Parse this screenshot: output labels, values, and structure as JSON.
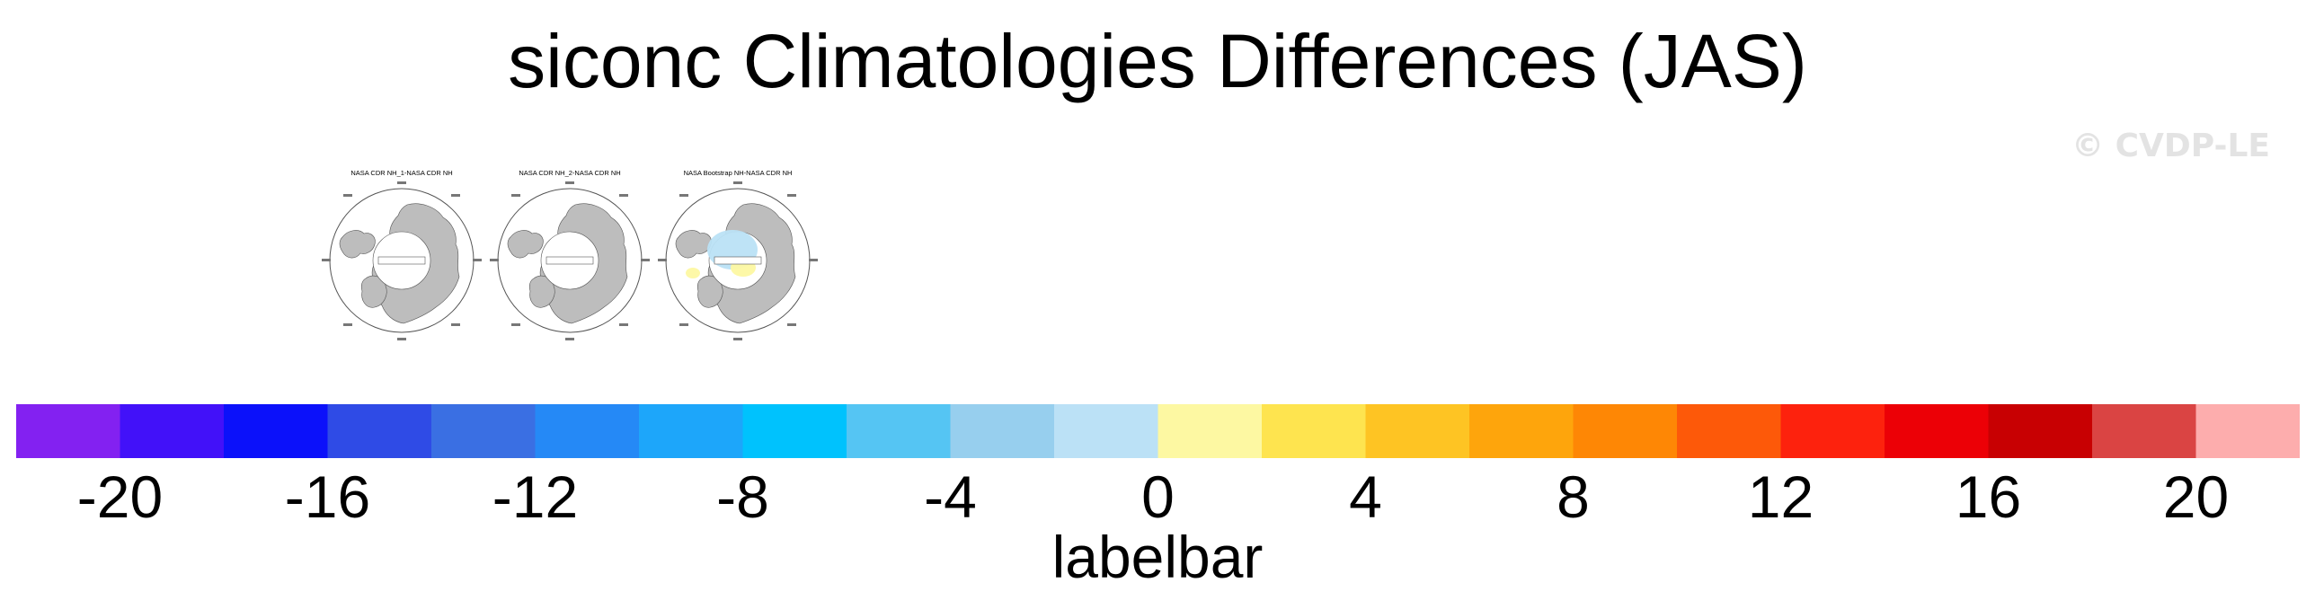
{
  "title": "siconc Climatologies Differences (JAS)",
  "watermark": "© CVDP-LE",
  "panels": [
    {
      "title": "NASA CDR NH_1-NASA CDR NH",
      "anomaly": "none"
    },
    {
      "title": "NASA CDR NH_2-NASA CDR NH",
      "anomaly": "none"
    },
    {
      "title": "NASA Bootstrap NH-NASA CDR NH",
      "anomaly": "mixed"
    }
  ],
  "chart_data": {
    "type": "heatmap",
    "title": "siconc Climatologies Differences (JAS)",
    "projection": "north polar stereographic",
    "panel_titles": [
      "NASA CDR NH_1-NASA CDR NH",
      "NASA CDR NH_2-NASA CDR NH",
      "NASA Bootstrap NH-NASA CDR NH"
    ],
    "colorbar": {
      "label": "labelbar",
      "range": [
        -22,
        22
      ],
      "boundaries": [
        -22,
        -20,
        -18,
        -16,
        -14,
        -12,
        -10,
        -8,
        -6,
        -4,
        -2,
        0,
        2,
        4,
        6,
        8,
        10,
        12,
        14,
        16,
        18,
        20,
        22
      ],
      "tick_labels": [
        "-20",
        "-16",
        "-12",
        "-8",
        "-4",
        "0",
        "4",
        "8",
        "12",
        "16",
        "20"
      ],
      "tick_values": [
        -20,
        -16,
        -12,
        -8,
        -4,
        0,
        4,
        8,
        12,
        16,
        20
      ],
      "colors": [
        "#8321f1",
        "#4211f9",
        "#0b11fa",
        "#2f4be6",
        "#3a6fe3",
        "#2589f6",
        "#1da6fa",
        "#00c2fd",
        "#55c5f3",
        "#97cfee",
        "#bbe1f6",
        "#fdf8a2",
        "#fee44f",
        "#fec423",
        "#fea50c",
        "#fe8705",
        "#fd5909",
        "#fd220d",
        "#ec0006",
        "#c80002",
        "#da4443",
        "#fdadad"
      ]
    }
  }
}
